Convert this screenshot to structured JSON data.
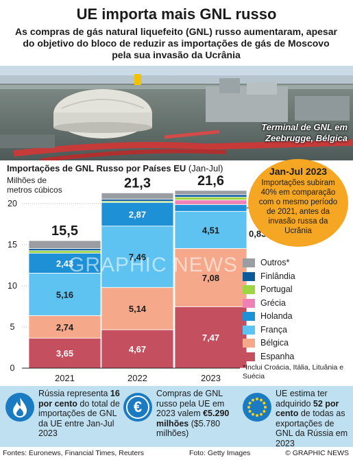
{
  "header": {
    "title": "UE importa mais GNL russo",
    "subtitle": "As compras de gás natural liquefeito (GNL) russo aumentaram, apesar do objetivo do bloco de reduzir as importações de gás de Moscovo pela sua invasão da Ucrânia"
  },
  "photo": {
    "caption_line1": "Terminal de GNL em",
    "caption_line2": "Zeebrugge, Bélgica"
  },
  "chart_header": {
    "title": "Importações de GNL Russo por Países EU",
    "title_suffix": " (Jan-Jul)",
    "ylabel_line1": "Milhões de",
    "ylabel_line2": "metros cúbicos"
  },
  "callout": {
    "title": "Jan-Jul 2023",
    "text": "Importações subiram 40% em comparação com o mesmo período de 2021, antes da invasão russa da Ucrânia"
  },
  "chart_data": {
    "type": "bar",
    "stacked": true,
    "categories": [
      "2021",
      "2022",
      "2023"
    ],
    "ylim": [
      0,
      22
    ],
    "yticks": [
      0,
      5,
      10,
      15,
      20
    ],
    "ytick_labels": [
      "0",
      "5",
      "10",
      "15",
      "20"
    ],
    "totals": [
      15.5,
      21.3,
      21.6
    ],
    "total_labels": [
      "15,5",
      "21,3",
      "21,6"
    ],
    "series": [
      {
        "name": "Espanha",
        "color": "#c44f5f",
        "values": [
          3.65,
          4.67,
          7.47
        ],
        "labels": [
          "3,65",
          "4,67",
          "7,47"
        ]
      },
      {
        "name": "Bélgica",
        "color": "#f5a98a",
        "values": [
          2.74,
          5.14,
          7.08
        ],
        "labels": [
          "2,74",
          "5,14",
          "7,08"
        ]
      },
      {
        "name": "França",
        "color": "#5ec3f0",
        "values": [
          5.16,
          7.46,
          4.51
        ],
        "labels": [
          "5,16",
          "7,46",
          "4,51"
        ]
      },
      {
        "name": "Holanda",
        "color": "#1e90d6",
        "values": [
          2.43,
          2.87,
          0.83
        ],
        "labels": [
          "2,43",
          "2,87",
          "0,83"
        ]
      },
      {
        "name": "Grécia",
        "color": "#ee82b5",
        "values": [
          0,
          0,
          0.55
        ],
        "labels": [
          "",
          "",
          ""
        ]
      },
      {
        "name": "Portugal",
        "color": "#9fd443",
        "values": [
          0.3,
          0.15,
          0.35
        ],
        "labels": [
          "",
          "",
          ""
        ]
      },
      {
        "name": "Finlândia",
        "color": "#0d5a9b",
        "values": [
          0.25,
          0.25,
          0.3
        ],
        "labels": [
          "",
          "",
          ""
        ]
      },
      {
        "name": "Outros*",
        "color": "#9a9ea3",
        "values": [
          0.97,
          0.76,
          0.51
        ],
        "labels": [
          "",
          "",
          ""
        ]
      }
    ],
    "footnote": "*Inclui Croácia, Itália, Lituânia e Suécia"
  },
  "facts": [
    {
      "icon": "flame-icon",
      "pre": "Rússia representa ",
      "bold": "16 por cento",
      "post": " do total de importações de GNL da UE entre Jan-Jul 2023"
    },
    {
      "icon": "euro-icon",
      "pre": "Compras de GNL russo pela UE em 2023 valem ",
      "bold": "€5.290 milhões",
      "post": " ($5.780 milhões)"
    },
    {
      "icon": "eu-flag-icon",
      "pre": "UE estima ter adquirido ",
      "bold": "52 por cento",
      "post": " de todas as exportações de GNL da Rússia em 2023"
    }
  ],
  "footer": {
    "sources": "Fontes: Euronews, Financial Times, Reuters",
    "credit": "Foto: Getty Images",
    "brand": "© GRAPHIC NEWS"
  },
  "watermark": "GRAPHIC NEWS",
  "colors": {
    "callout": "#f5a623",
    "fact_band": "#bfe0f1",
    "icon_blue": "#1a7ac2"
  }
}
